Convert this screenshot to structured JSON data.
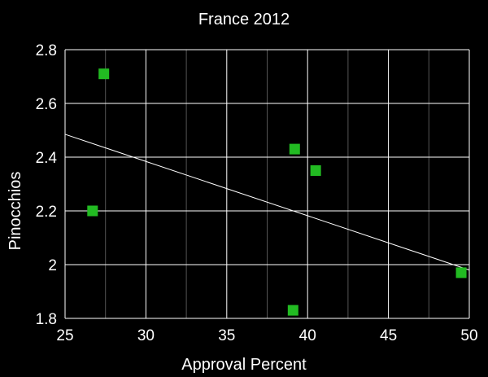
{
  "chart_data": {
    "type": "scatter",
    "title": "France 2012",
    "xlabel": "Approval Percent",
    "ylabel": "Pinocchios",
    "xlim": [
      25,
      50
    ],
    "ylim": [
      1.8,
      2.8
    ],
    "xticks": [
      25,
      30,
      35,
      40,
      45,
      50
    ],
    "xtick_labels": [
      "25",
      "30",
      "35",
      "40",
      "45",
      "50"
    ],
    "yticks": [
      1.8,
      2.0,
      2.2,
      2.4,
      2.6,
      2.8
    ],
    "ytick_labels": [
      "1.8",
      "2",
      "2.2",
      "2.4",
      "2.6",
      "2.8"
    ],
    "x_minor_ticks": [
      27.5,
      32.5,
      37.5,
      42.5,
      47.5
    ],
    "grid": true,
    "legend": "none",
    "series": [
      {
        "color": "#22bb22",
        "marker": "square",
        "points": [
          {
            "x": 27.4,
            "y": 2.71
          },
          {
            "x": 26.7,
            "y": 2.2
          },
          {
            "x": 39.2,
            "y": 2.43
          },
          {
            "x": 40.5,
            "y": 2.35
          },
          {
            "x": 39.1,
            "y": 1.83
          },
          {
            "x": 49.5,
            "y": 1.97
          }
        ]
      }
    ],
    "trendline": {
      "color": "#ffffff",
      "x": [
        25,
        50
      ],
      "y": [
        2.485,
        1.98
      ]
    },
    "colors": {
      "background": "#000000",
      "plot_background": "#000000",
      "major_grid": "#ffffff",
      "minor_grid": "#555555",
      "text": "#ffffff"
    }
  }
}
